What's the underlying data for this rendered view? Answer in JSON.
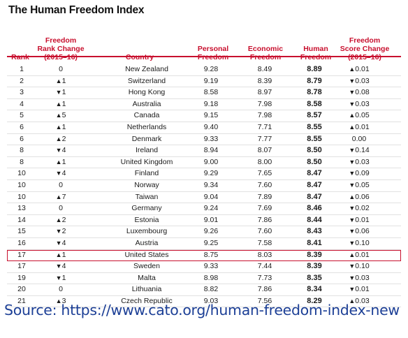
{
  "title": "The Human Freedom Index",
  "columns": {
    "rank": "Rank",
    "change": "Freedom\nRank Change\n(2015–16)",
    "country": "Country",
    "personal": "Personal\nFreedom",
    "economic": "Economic\nFreedom",
    "human": "Human\nFreedom",
    "score": "Freedom\nScore Change\n(2015–16)"
  },
  "rows": [
    {
      "rank": "1",
      "change_dir": "",
      "change": "0",
      "country": "New Zealand",
      "personal": "9.28",
      "economic": "8.49",
      "human": "8.89",
      "score_dir": "up",
      "score": "0.01"
    },
    {
      "rank": "2",
      "change_dir": "up",
      "change": "1",
      "country": "Switzerland",
      "personal": "9.19",
      "economic": "8.39",
      "human": "8.79",
      "score_dir": "down",
      "score": "0.03"
    },
    {
      "rank": "3",
      "change_dir": "down",
      "change": "1",
      "country": "Hong Kong",
      "personal": "8.58",
      "economic": "8.97",
      "human": "8.78",
      "score_dir": "down",
      "score": "0.08"
    },
    {
      "rank": "4",
      "change_dir": "up",
      "change": "1",
      "country": "Australia",
      "personal": "9.18",
      "economic": "7.98",
      "human": "8.58",
      "score_dir": "down",
      "score": "0.03"
    },
    {
      "rank": "5",
      "change_dir": "up",
      "change": "5",
      "country": "Canada",
      "personal": "9.15",
      "economic": "7.98",
      "human": "8.57",
      "score_dir": "up",
      "score": "0.05"
    },
    {
      "rank": "6",
      "change_dir": "up",
      "change": "1",
      "country": "Netherlands",
      "personal": "9.40",
      "economic": "7.71",
      "human": "8.55",
      "score_dir": "up",
      "score": "0.01"
    },
    {
      "rank": "6",
      "change_dir": "up",
      "change": "2",
      "country": "Denmark",
      "personal": "9.33",
      "economic": "7.77",
      "human": "8.55",
      "score_dir": "",
      "score": "0.00"
    },
    {
      "rank": "8",
      "change_dir": "down",
      "change": "4",
      "country": "Ireland",
      "personal": "8.94",
      "economic": "8.07",
      "human": "8.50",
      "score_dir": "down",
      "score": "0.14"
    },
    {
      "rank": "8",
      "change_dir": "up",
      "change": "1",
      "country": "United Kingdom",
      "personal": "9.00",
      "economic": "8.00",
      "human": "8.50",
      "score_dir": "down",
      "score": "0.03"
    },
    {
      "rank": "10",
      "change_dir": "down",
      "change": "4",
      "country": "Finland",
      "personal": "9.29",
      "economic": "7.65",
      "human": "8.47",
      "score_dir": "down",
      "score": "0.09"
    },
    {
      "rank": "10",
      "change_dir": "",
      "change": "0",
      "country": "Norway",
      "personal": "9.34",
      "economic": "7.60",
      "human": "8.47",
      "score_dir": "down",
      "score": "0.05"
    },
    {
      "rank": "10",
      "change_dir": "up",
      "change": "7",
      "country": "Taiwan",
      "personal": "9.04",
      "economic": "7.89",
      "human": "8.47",
      "score_dir": "up",
      "score": "0.06"
    },
    {
      "rank": "13",
      "change_dir": "",
      "change": "0",
      "country": "Germany",
      "personal": "9.24",
      "economic": "7.69",
      "human": "8.46",
      "score_dir": "down",
      "score": "0.02"
    },
    {
      "rank": "14",
      "change_dir": "up",
      "change": "2",
      "country": "Estonia",
      "personal": "9.01",
      "economic": "7.86",
      "human": "8.44",
      "score_dir": "down",
      "score": "0.01"
    },
    {
      "rank": "15",
      "change_dir": "down",
      "change": "2",
      "country": "Luxembourg",
      "personal": "9.26",
      "economic": "7.60",
      "human": "8.43",
      "score_dir": "down",
      "score": "0.06"
    },
    {
      "rank": "16",
      "change_dir": "down",
      "change": "4",
      "country": "Austria",
      "personal": "9.25",
      "economic": "7.58",
      "human": "8.41",
      "score_dir": "down",
      "score": "0.10"
    },
    {
      "rank": "17",
      "change_dir": "up",
      "change": "1",
      "country": "United States",
      "personal": "8.75",
      "economic": "8.03",
      "human": "8.39",
      "score_dir": "up",
      "score": "0.01",
      "highlight": true
    },
    {
      "rank": "17",
      "change_dir": "down",
      "change": "4",
      "country": "Sweden",
      "personal": "9.33",
      "economic": "7.44",
      "human": "8.39",
      "score_dir": "down",
      "score": "0.10"
    },
    {
      "rank": "19",
      "change_dir": "down",
      "change": "1",
      "country": "Malta",
      "personal": "8.98",
      "economic": "7.73",
      "human": "8.35",
      "score_dir": "down",
      "score": "0.03"
    },
    {
      "rank": "20",
      "change_dir": "",
      "change": "0",
      "country": "Lithuania",
      "personal": "8.82",
      "economic": "7.86",
      "human": "8.34",
      "score_dir": "down",
      "score": "0.01"
    },
    {
      "rank": "21",
      "change_dir": "up",
      "change": "3",
      "country": "Czech Republic",
      "personal": "9.03",
      "economic": "7.56",
      "human": "8.29",
      "score_dir": "up",
      "score": "0.03"
    }
  ],
  "source": "Source: https://www.cato.org/human-freedom-index-new",
  "colors": {
    "accent": "#c8102e",
    "source_text": "#1c3f96"
  }
}
